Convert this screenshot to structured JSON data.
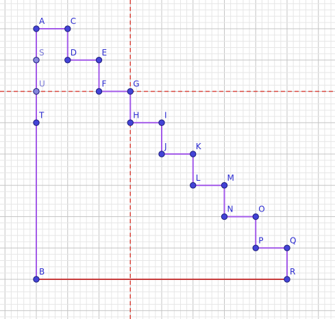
{
  "diagram": {
    "colors": {
      "grid_minor": "#e6e6e6",
      "grid_major": "#c4c4c4",
      "polyline": "#a259e8",
      "base_segment": "#c73a3a",
      "axis_dashed": "#d9463d",
      "point_fill": "#4343d6",
      "point_fill_light": "#8686dc",
      "point_stroke": "#1e1e7a",
      "label": "#2a2ad0"
    },
    "points": [
      {
        "id": "A",
        "label": "A",
        "x": 0,
        "y": 8
      },
      {
        "id": "C",
        "label": "C",
        "x": 1,
        "y": 8
      },
      {
        "id": "D",
        "label": "D",
        "x": 1,
        "y": 7
      },
      {
        "id": "E",
        "label": "E",
        "x": 2,
        "y": 7
      },
      {
        "id": "F",
        "label": "F",
        "x": 2,
        "y": 6
      },
      {
        "id": "G",
        "label": "G",
        "x": 3,
        "y": 6
      },
      {
        "id": "H",
        "label": "H",
        "x": 3,
        "y": 5
      },
      {
        "id": "I",
        "label": "I",
        "x": 4,
        "y": 5
      },
      {
        "id": "J",
        "label": "J",
        "x": 4,
        "y": 4
      },
      {
        "id": "K",
        "label": "K",
        "x": 5,
        "y": 4
      },
      {
        "id": "L",
        "label": "L",
        "x": 5,
        "y": 3
      },
      {
        "id": "M",
        "label": "M",
        "x": 6,
        "y": 3
      },
      {
        "id": "N",
        "label": "N",
        "x": 6,
        "y": 2
      },
      {
        "id": "O",
        "label": "O",
        "x": 7,
        "y": 2
      },
      {
        "id": "P",
        "label": "P",
        "x": 7,
        "y": 1
      },
      {
        "id": "Q",
        "label": "Q",
        "x": 8,
        "y": 1
      },
      {
        "id": "R",
        "label": "R",
        "x": 8,
        "y": 0
      },
      {
        "id": "B",
        "label": "B",
        "x": 0,
        "y": 0
      },
      {
        "id": "S",
        "label": "S",
        "x": 0,
        "y": 7,
        "light": true
      },
      {
        "id": "U",
        "label": "U",
        "x": 0,
        "y": 6,
        "light": true
      },
      {
        "id": "T",
        "label": "T",
        "x": 0,
        "y": 5
      }
    ],
    "staircase_path": [
      "A",
      "C",
      "D",
      "E",
      "F",
      "G",
      "H",
      "I",
      "J",
      "K",
      "L",
      "M",
      "N",
      "O",
      "P",
      "Q",
      "R"
    ],
    "left_side": [
      "A",
      "B"
    ],
    "base_side": [
      "B",
      "R"
    ],
    "dashed_vertical_x": 3,
    "dashed_horizontal_y": 6
  }
}
